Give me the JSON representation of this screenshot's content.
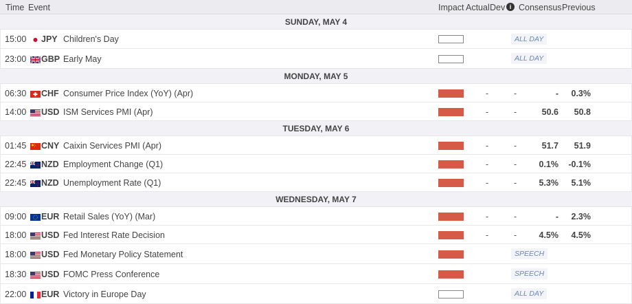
{
  "header": {
    "time": "Time",
    "event": "Event",
    "impact": "Impact",
    "actual": "Actual",
    "dev": "Dev",
    "info_icon": "i",
    "consensus": "Consensus",
    "previous": "Previous"
  },
  "colors": {
    "high_impact": "#d55a48",
    "badge_text": "#6e86b3"
  },
  "days": [
    {
      "label": "SUNDAY, MAY 4",
      "events": [
        {
          "time": "15:00",
          "flag": "jp",
          "currency": "JPY",
          "event": "Children's Day",
          "impact": "none",
          "badge": "ALL DAY"
        },
        {
          "time": "23:00",
          "flag": "gb",
          "currency": "GBP",
          "event": "Early May",
          "impact": "none",
          "badge": "ALL DAY"
        }
      ]
    },
    {
      "label": "MONDAY, MAY 5",
      "events": [
        {
          "time": "06:30",
          "flag": "ch",
          "currency": "CHF",
          "event": "Consumer Price Index (YoY) (Apr)",
          "impact": "high",
          "actual": "-",
          "dev": "-",
          "consensus": "-",
          "previous": "0.3%"
        },
        {
          "time": "14:00",
          "flag": "us",
          "currency": "USD",
          "event": "ISM Services PMI (Apr)",
          "impact": "high",
          "actual": "-",
          "dev": "-",
          "consensus": "50.6",
          "previous": "50.8"
        }
      ]
    },
    {
      "label": "TUESDAY, MAY 6",
      "events": [
        {
          "time": "01:45",
          "flag": "cn",
          "currency": "CNY",
          "event": "Caixin Services PMI (Apr)",
          "impact": "high",
          "actual": "-",
          "dev": "-",
          "consensus": "51.7",
          "previous": "51.9"
        },
        {
          "time": "22:45",
          "flag": "nz",
          "currency": "NZD",
          "event": "Employment Change (Q1)",
          "impact": "high",
          "actual": "-",
          "dev": "-",
          "consensus": "0.1%",
          "previous": "-0.1%"
        },
        {
          "time": "22:45",
          "flag": "nz",
          "currency": "NZD",
          "event": "Unemployment Rate (Q1)",
          "impact": "high",
          "actual": "-",
          "dev": "-",
          "consensus": "5.3%",
          "previous": "5.1%"
        }
      ]
    },
    {
      "label": "WEDNESDAY, MAY 7",
      "events": [
        {
          "time": "09:00",
          "flag": "eu",
          "currency": "EUR",
          "event": "Retail Sales (YoY) (Mar)",
          "impact": "high",
          "actual": "-",
          "dev": "-",
          "consensus": "-",
          "previous": "2.3%"
        },
        {
          "time": "18:00",
          "flag": "us",
          "currency": "USD",
          "event": "Fed Interest Rate Decision",
          "impact": "high",
          "actual": "-",
          "dev": "-",
          "consensus": "4.5%",
          "previous": "4.5%"
        },
        {
          "time": "18:00",
          "flag": "us",
          "currency": "USD",
          "event": "Fed Monetary Policy Statement",
          "impact": "high",
          "badge": "SPEECH"
        },
        {
          "time": "18:30",
          "flag": "us",
          "currency": "USD",
          "event": "FOMC Press Conference",
          "impact": "high",
          "badge": "SPEECH"
        },
        {
          "time": "22:00",
          "flag": "fr",
          "currency": "EUR",
          "event": "Victory in Europe Day",
          "impact": "none",
          "badge": "ALL DAY"
        }
      ]
    }
  ]
}
